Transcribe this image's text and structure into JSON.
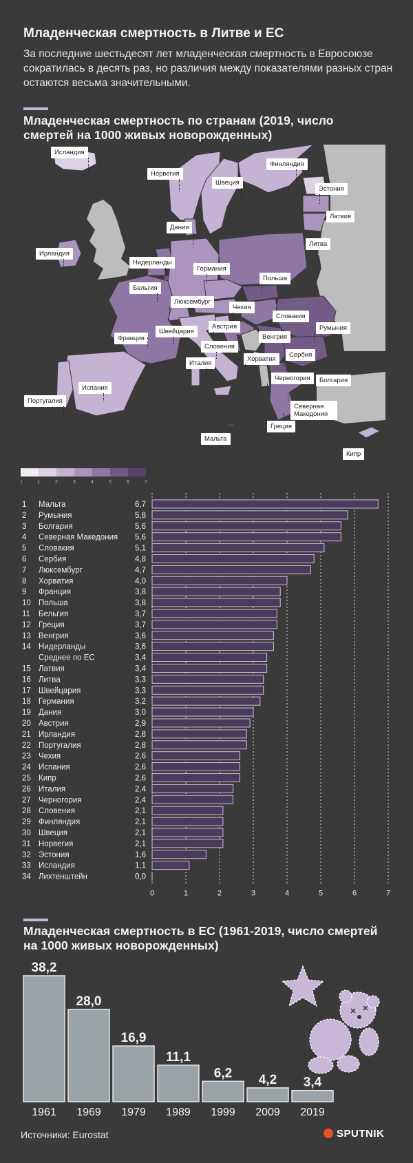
{
  "title": "Младенческая смертность в Литве и ЕС",
  "intro": "За последние шестьдесят лет младенческая смертность в Евросоюзе сократилась в десять раз, но различия между показателями разных стран остаются весьма значительными.",
  "map_section": {
    "title": "Младенческая смертность по странам (2019, число смертей на 1000 живых новорожденных)",
    "labels": {
      "iceland": "Исландия",
      "norway": "Норвегия",
      "sweden": "Швеция",
      "finland": "Финляндия",
      "estonia": "Эстония",
      "latvia": "Латвия",
      "lithuania": "Литва",
      "denmark": "Дания",
      "ireland": "Ирландия",
      "netherlands": "Нидерланды",
      "germany": "Германия",
      "poland": "Польша",
      "belgium": "Бельгия",
      "luxembourg": "Люксембург",
      "czechia": "Чехия",
      "slovakia": "Словакия",
      "france": "Франция",
      "switzerland": "Швейцария",
      "austria": "Австрия",
      "hungary": "Венгрия",
      "romania": "Румыния",
      "slovenia": "Словения",
      "italy": "Италия",
      "croatia": "Хорватия",
      "serbia": "Сербия",
      "montenegro": "Черногория",
      "bulgaria": "Болгария",
      "portugal": "Португалия",
      "spain": "Испания",
      "north_macedonia": "Северная Македония",
      "greece": "Греция",
      "malta": "Мальта",
      "cyprus": "Кипр"
    },
    "legend": {
      "ticks": [
        "0",
        "1",
        "2",
        "3",
        "4",
        "5",
        "6",
        "7"
      ],
      "colors": [
        "#f1ebf4",
        "#ddd1e6",
        "#c5b3d4",
        "#ab95bf",
        "#8f77a5",
        "#735b88",
        "#574269"
      ]
    }
  },
  "chart_data": [
    {
      "type": "bar",
      "orientation": "horizontal",
      "title": "Младенческая смертность по странам (2019, число смертей на 1000 живых новорожденных)",
      "xlim": [
        0,
        7
      ],
      "x_ticks": [
        "0",
        "1",
        "2",
        "3",
        "4",
        "5",
        "6",
        "7"
      ],
      "rows": [
        {
          "rank": "1",
          "country": "Мальта",
          "value": 6.7,
          "label": "6,7"
        },
        {
          "rank": "2",
          "country": "Румыния",
          "value": 5.8,
          "label": "5,8"
        },
        {
          "rank": "3",
          "country": "Болгария",
          "value": 5.6,
          "label": "5,6"
        },
        {
          "rank": "4",
          "country": "Северная Македония",
          "value": 5.6,
          "label": "5,6"
        },
        {
          "rank": "5",
          "country": "Словакия",
          "value": 5.1,
          "label": "5,1"
        },
        {
          "rank": "6",
          "country": "Сербия",
          "value": 4.8,
          "label": "4,8"
        },
        {
          "rank": "7",
          "country": "Люксембург",
          "value": 4.7,
          "label": "4,7"
        },
        {
          "rank": "8",
          "country": "Хорватия",
          "value": 4.0,
          "label": "4,0"
        },
        {
          "rank": "9",
          "country": "Франция",
          "value": 3.8,
          "label": "3,8"
        },
        {
          "rank": "10",
          "country": "Польша",
          "value": 3.8,
          "label": "3,8"
        },
        {
          "rank": "11",
          "country": "Бельгия",
          "value": 3.7,
          "label": "3,7"
        },
        {
          "rank": "12",
          "country": "Греция",
          "value": 3.7,
          "label": "3,7"
        },
        {
          "rank": "13",
          "country": "Венгрия",
          "value": 3.6,
          "label": "3,6"
        },
        {
          "rank": "14",
          "country": "Нидерланды",
          "value": 3.6,
          "label": "3,6"
        },
        {
          "rank": "",
          "country": "Среднее по ЕС",
          "value": 3.4,
          "label": "3,4"
        },
        {
          "rank": "15",
          "country": "Латвия",
          "value": 3.4,
          "label": "3,4"
        },
        {
          "rank": "16",
          "country": "Литва",
          "value": 3.3,
          "label": "3,3"
        },
        {
          "rank": "17",
          "country": "Швейцария",
          "value": 3.3,
          "label": "3,3"
        },
        {
          "rank": "18",
          "country": "Германия",
          "value": 3.2,
          "label": "3,2"
        },
        {
          "rank": "19",
          "country": "Дания",
          "value": 3.0,
          "label": "3,0"
        },
        {
          "rank": "20",
          "country": "Австрия",
          "value": 2.9,
          "label": "2,9"
        },
        {
          "rank": "21",
          "country": "Ирландия",
          "value": 2.8,
          "label": "2,8"
        },
        {
          "rank": "22",
          "country": "Португалия",
          "value": 2.8,
          "label": "2,8"
        },
        {
          "rank": "23",
          "country": "Чехия",
          "value": 2.6,
          "label": "2,6"
        },
        {
          "rank": "24",
          "country": "Испания",
          "value": 2.6,
          "label": "2,6"
        },
        {
          "rank": "25",
          "country": "Кипр",
          "value": 2.6,
          "label": "2,6"
        },
        {
          "rank": "26",
          "country": "Италия",
          "value": 2.4,
          "label": "2,4"
        },
        {
          "rank": "27",
          "country": "Черногория",
          "value": 2.4,
          "label": "2,4"
        },
        {
          "rank": "28",
          "country": "Словения",
          "value": 2.1,
          "label": "2,1"
        },
        {
          "rank": "29",
          "country": "Финляндия",
          "value": 2.1,
          "label": "2,1"
        },
        {
          "rank": "30",
          "country": "Швеция",
          "value": 2.1,
          "label": "2,1"
        },
        {
          "rank": "31",
          "country": "Норвегия",
          "value": 2.1,
          "label": "2,1"
        },
        {
          "rank": "32",
          "country": "Эстония",
          "value": 1.6,
          "label": "1,6"
        },
        {
          "rank": "33",
          "country": "Исландия",
          "value": 1.1,
          "label": "1,1"
        },
        {
          "rank": "34",
          "country": "Лихтенштейн",
          "value": 0.0,
          "label": "0,0"
        }
      ]
    },
    {
      "type": "bar",
      "orientation": "vertical",
      "title": "Младенческая смертность в ЕС (1961-2019, число смертей на 1000 живых новорожденных)",
      "categories": [
        "1961",
        "1969",
        "1979",
        "1989",
        "1999",
        "2009",
        "2019"
      ],
      "values": [
        38.2,
        28.0,
        16.9,
        11.1,
        6.2,
        4.2,
        3.4
      ],
      "value_labels": [
        "38,2",
        "28,0",
        "16,9",
        "11,1",
        "6,2",
        "4,2",
        "3,4"
      ],
      "ylim": [
        0,
        38.2
      ]
    }
  ],
  "footer": {
    "source": "Источники: Eurostat",
    "brand": "SPUTNIK"
  },
  "colors": {
    "background": "#3a3a3a",
    "bar": "#4a3b5c",
    "bar_stroke": "#cfc2da",
    "hist_bar": "#9aa3a8",
    "accent": "#c9b7d8"
  }
}
